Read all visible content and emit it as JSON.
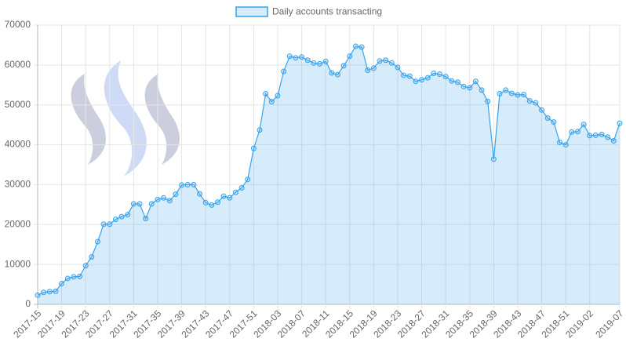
{
  "chart_data": {
    "type": "line",
    "categories": [
      "2017-15",
      null,
      null,
      null,
      "2017-19",
      null,
      null,
      null,
      "2017-23",
      null,
      null,
      null,
      "2017-27",
      null,
      null,
      null,
      "2017-31",
      null,
      null,
      null,
      "2017-35",
      null,
      null,
      null,
      "2017-39",
      null,
      null,
      null,
      "2017-43",
      null,
      null,
      null,
      "2017-47",
      null,
      null,
      null,
      "2017-51",
      null,
      null,
      null,
      "2018-03",
      null,
      null,
      null,
      "2018-07",
      null,
      null,
      null,
      "2018-11",
      null,
      null,
      null,
      "2018-15",
      null,
      null,
      null,
      "2018-19",
      null,
      null,
      null,
      "2018-23",
      null,
      null,
      null,
      "2018-27",
      null,
      null,
      null,
      "2018-31",
      null,
      null,
      null,
      "2018-35",
      null,
      null,
      null,
      "2018-39",
      null,
      null,
      null,
      "2018-43",
      null,
      null,
      null,
      "2018-47",
      null,
      null,
      null,
      "2018-51",
      null,
      null,
      null,
      "2019-02",
      null,
      null,
      null,
      null,
      "2019-07"
    ],
    "series": [
      {
        "name": "Daily accounts transacting",
        "color": "#36a2eb",
        "fill": "rgba(54,162,235,0.2)",
        "values": [
          2300,
          3000,
          3200,
          3300,
          5200,
          6500,
          6900,
          7000,
          9700,
          11900,
          15700,
          20100,
          20100,
          21300,
          22000,
          22500,
          25200,
          25200,
          21500,
          25200,
          26300,
          26700,
          26000,
          27600,
          29900,
          30000,
          30000,
          27700,
          25500,
          24900,
          25600,
          27100,
          26700,
          28100,
          29200,
          31300,
          39100,
          43700,
          52800,
          50800,
          52300,
          58400,
          62200,
          61800,
          62000,
          61200,
          60500,
          60300,
          60900,
          58000,
          57600,
          59800,
          62200,
          64700,
          64500,
          58700,
          59200,
          61000,
          61200,
          60500,
          59400,
          57400,
          57200,
          55900,
          56300,
          56800,
          57900,
          57700,
          57100,
          56000,
          55700,
          54600,
          54300,
          55900,
          53700,
          50900,
          36400,
          52800,
          53700,
          52900,
          52500,
          52600,
          51000,
          50500,
          48700,
          46700,
          45700,
          40600,
          40000,
          43200,
          43300,
          45100,
          42300,
          42400,
          42600,
          41900,
          41000,
          45400
        ]
      }
    ],
    "ylim": [
      0,
      70000
    ],
    "yticks": [
      0,
      10000,
      20000,
      30000,
      40000,
      50000,
      60000,
      70000
    ],
    "grid": true,
    "legend": "top"
  }
}
